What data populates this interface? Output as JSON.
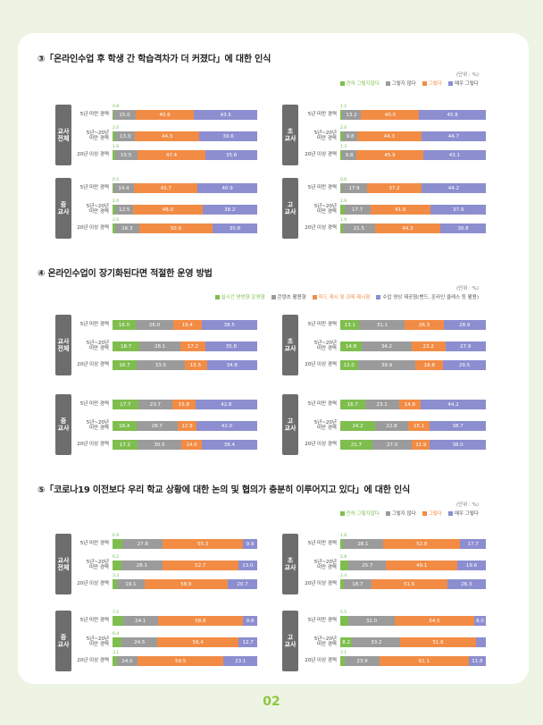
{
  "page_number": "02",
  "colors": {
    "green": "#7fbe4e",
    "gray": "#9b9b9b",
    "orange": "#f28c45",
    "purple": "#8c8ed0",
    "tag": "#6d6d6d"
  },
  "chart_data": [
    {
      "type": "bar",
      "title": "③「온라인수업 후 학생 간 학습격차가 더 커졌다」에 대한 인식",
      "unit": "(단위 : %)",
      "series_names": [
        "전혀 그렇지않다",
        "그렇지 않다",
        "그렇다",
        "매우 그렇다"
      ],
      "categories": [
        "5년 미만 경력",
        "5년~20년 미만 경력",
        "20년 이상 경력"
      ],
      "groups": [
        {
          "name": "교사 전체",
          "rows": [
            [
              0.8,
              15.0,
              40.6,
              43.5
            ],
            [
              2.0,
              13.3,
              44.3,
              39.6
            ],
            [
              1.6,
              15.5,
              47.4,
              35.6
            ]
          ]
        },
        {
          "name": "초 교사",
          "rows": [
            [
              1.1,
              13.2,
              40.0,
              45.8
            ],
            [
              2.0,
              9.8,
              44.3,
              44.7
            ],
            [
              1.3,
              9.8,
              45.9,
              43.1
            ]
          ]
        },
        {
          "name": "중 교사",
          "rows": [
            [
              0.5,
              14.4,
              43.7,
              40.9
            ],
            [
              2.0,
              12.5,
              48.0,
              38.2
            ],
            [
              2.0,
              16.3,
              50.9,
              30.8
            ]
          ]
        },
        {
          "name": "고 교사",
          "rows": [
            [
              0.6,
              17.9,
              37.2,
              44.2
            ],
            [
              2.9,
              17.7,
              41.6,
              37.9
            ],
            [
              1.9,
              21.5,
              44.3,
              30.8
            ]
          ]
        }
      ]
    },
    {
      "type": "bar",
      "title": "④ 온라인수업이 장기화된다면 적절한 운영 방법",
      "unit": "(단위 : %)",
      "series_names": [
        "실시간 쌍방향 운영형",
        "콘텐츠 활용형",
        "피드 제시 및 과제 제시형",
        "수업 영상 제공형(밴드, 온라인 클래스 등 활용)"
      ],
      "categories": [
        "5년 미만 경력",
        "5년~20년 미만 경력",
        "20년 이상 경력"
      ],
      "groups": [
        {
          "name": "교사 전체",
          "rows": [
            [
              16.0,
              26.0,
              19.4,
              38.5
            ],
            [
              18.7,
              28.1,
              17.2,
              35.8
            ],
            [
              16.7,
              33.0,
              15.5,
              34.8
            ]
          ]
        },
        {
          "name": "초 교사",
          "rows": [
            [
              13.1,
              31.1,
              26.3,
              28.9
            ],
            [
              14.8,
              34.2,
              23.2,
              27.9
            ],
            [
              12.0,
              39.9,
              18.8,
              29.5
            ]
          ]
        },
        {
          "name": "중 교사",
          "rows": [
            [
              17.7,
              23.7,
              15.8,
              42.8
            ],
            [
              16.4,
              28.7,
              12.9,
              42.0
            ],
            [
              17.2,
              30.5,
              14.0,
              38.4
            ]
          ]
        },
        {
          "name": "고 교사",
          "rows": [
            [
              16.7,
              23.1,
              14.8,
              44.2
            ],
            [
              24.2,
              22.8,
              15.1,
              38.7
            ],
            [
              21.7,
              27.0,
              11.9,
              38.0
            ]
          ]
        }
      ]
    },
    {
      "type": "bar",
      "title": "⑤「코로나19 이전보다 우리 학교 상황에 대한 논의 및 협의가 충분히 이루어지고 있다」에 대한 인식",
      "unit": "(단위 : %)",
      "series_names": [
        "전혀 그렇지않다",
        "그렇지 않다",
        "그렇다",
        "매우 그렇다"
      ],
      "categories": [
        "5년 미만 경력",
        "5년~20년 미만 경력",
        "20년 이상 경력"
      ],
      "groups": [
        {
          "name": "교사 전체",
          "rows": [
            [
              6.9,
              27.8,
              55.3,
              9.9
            ],
            [
              6.2,
              28.1,
              52.7,
              13.0
            ],
            [
              3.3,
              19.1,
              58.9,
              20.7
            ]
          ]
        },
        {
          "name": "초 교사",
          "rows": [
            [
              1.6,
              28.1,
              52.8,
              17.7
            ],
            [
              5.8,
              25.7,
              49.1,
              19.6
            ],
            [
              2.4,
              18.7,
              51.6,
              26.3
            ]
          ]
        },
        {
          "name": "중 교사",
          "rows": [
            [
              7.2,
              24.1,
              58.8,
              9.8
            ],
            [
              6.4,
              24.5,
              56.4,
              12.7
            ],
            [
              3.1,
              14.0,
              59.5,
              23.1
            ]
          ]
        },
        {
          "name": "고 교사",
          "rows": [
            [
              5.5,
              32.0,
              54.5,
              8.0
            ],
            [
              8.2,
              33.2,
              51.6,
              7.0
            ],
            [
              3.1,
              23.9,
              61.1,
              11.8
            ]
          ]
        }
      ]
    }
  ]
}
